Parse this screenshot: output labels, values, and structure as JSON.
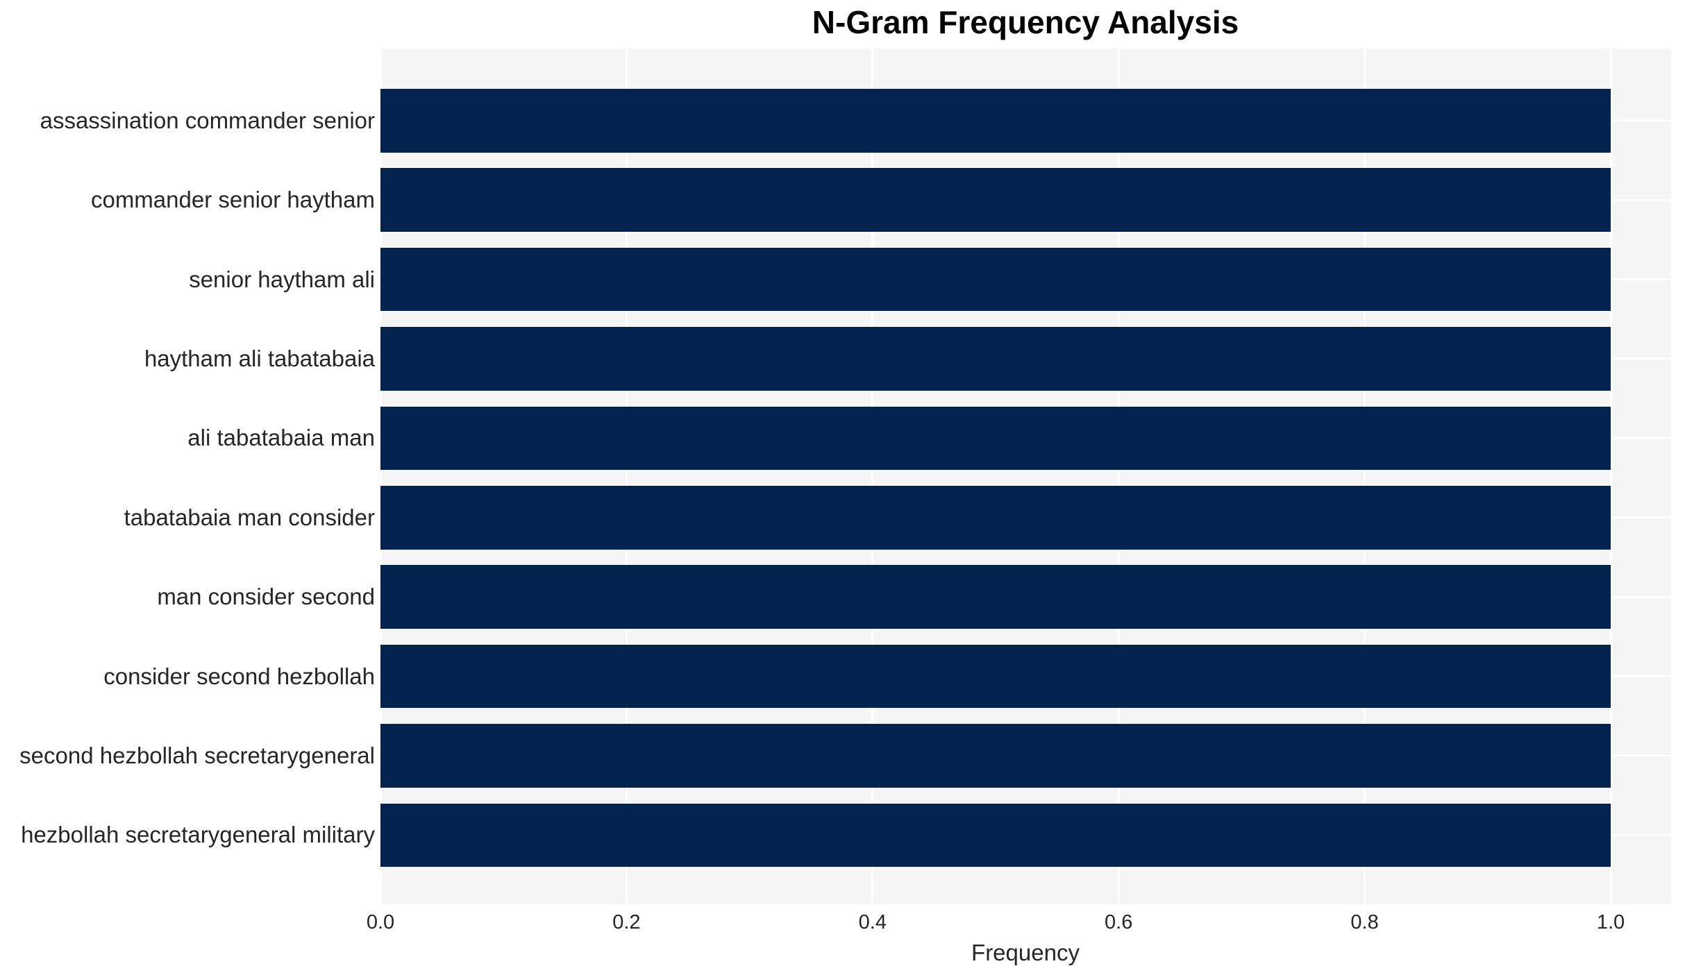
{
  "chart_data": {
    "type": "bar",
    "orientation": "horizontal",
    "title": "N-Gram Frequency Analysis",
    "xlabel": "Frequency",
    "ylabel": "",
    "categories": [
      "assassination commander senior",
      "commander senior haytham",
      "senior haytham ali",
      "haytham ali tabatabaia",
      "ali tabatabaia man",
      "tabatabaia man consider",
      "man consider second",
      "consider second hezbollah",
      "second hezbollah secretarygeneral",
      "hezbollah secretarygeneral military"
    ],
    "values": [
      1.0,
      1.0,
      1.0,
      1.0,
      1.0,
      1.0,
      1.0,
      1.0,
      1.0,
      1.0
    ],
    "xticks": {
      "values": [
        0.0,
        0.2,
        0.4,
        0.6,
        0.8,
        1.0
      ],
      "labels": [
        "0.0",
        "0.2",
        "0.4",
        "0.6",
        "0.8",
        "1.0"
      ]
    },
    "xlim": [
      0.0,
      1.05
    ],
    "grid": true,
    "legend": false,
    "colors": {
      "bar": "#02234e",
      "plot_background": "#f5f5f6",
      "gridline": "#ffffff",
      "tick_text": "#262626",
      "title_text": "#050505"
    }
  }
}
